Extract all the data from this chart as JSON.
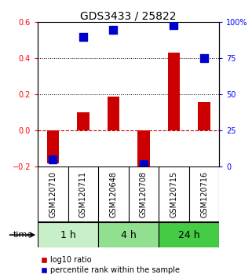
{
  "title": "GDS3433 / 25822",
  "samples": [
    "GSM120710",
    "GSM120711",
    "GSM120648",
    "GSM120708",
    "GSM120715",
    "GSM120716"
  ],
  "log10_ratio": [
    -0.18,
    0.1,
    0.19,
    -0.22,
    0.43,
    0.16
  ],
  "percentile_rank": [
    5,
    90,
    95,
    2,
    98,
    75
  ],
  "time_groups": [
    {
      "label": "1 h",
      "samples": [
        0,
        1
      ],
      "color": "#c8f0c8"
    },
    {
      "label": "4 h",
      "samples": [
        2,
        3
      ],
      "color": "#90e090"
    },
    {
      "label": "24 h",
      "samples": [
        4,
        5
      ],
      "color": "#44cc44"
    }
  ],
  "bar_color": "#cc0000",
  "dot_color": "#0000cc",
  "left_ylim": [
    -0.2,
    0.6
  ],
  "right_ylim": [
    0,
    100
  ],
  "left_yticks": [
    -0.2,
    0.0,
    0.2,
    0.4,
    0.6
  ],
  "right_yticks": [
    0,
    25,
    50,
    75,
    100
  ],
  "right_yticklabels": [
    "0",
    "25",
    "50",
    "75",
    "100%"
  ],
  "hlines": [
    0.2,
    0.4
  ],
  "hline_zero_color": "#cc0000",
  "hline_grid_color": "#000000",
  "bar_width": 0.4,
  "dot_size": 45,
  "background_color": "#ffffff",
  "plot_bg_color": "#ffffff",
  "sample_label_area_color": "#cccccc",
  "sample_label_fontsize": 7,
  "time_label_fontsize": 9,
  "legend_fontsize": 7,
  "title_fontsize": 10
}
